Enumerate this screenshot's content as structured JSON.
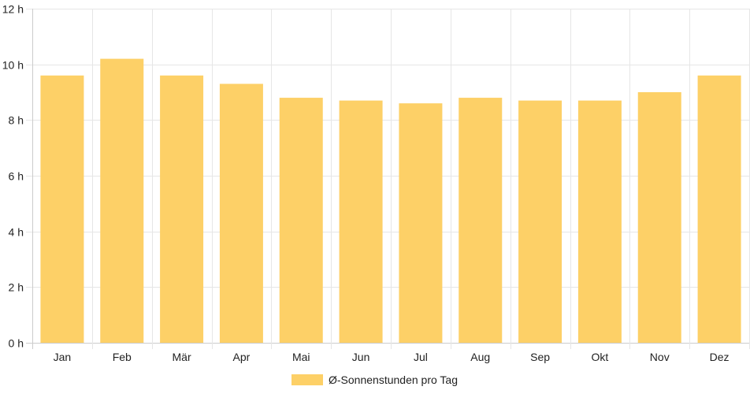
{
  "chart_data": {
    "type": "bar",
    "categories": [
      "Jan",
      "Feb",
      "Mär",
      "Apr",
      "Mai",
      "Jun",
      "Jul",
      "Aug",
      "Sep",
      "Okt",
      "Nov",
      "Dez"
    ],
    "series": [
      {
        "name": "Ø-Sonnenstunden pro Tag",
        "values": [
          9.6,
          10.2,
          9.6,
          9.3,
          8.8,
          8.7,
          8.6,
          8.8,
          8.7,
          8.7,
          9.0,
          9.6
        ],
        "color": "#fdd067"
      }
    ],
    "y_ticks": [
      "0 h",
      "2 h",
      "4 h",
      "6 h",
      "8 h",
      "10 h",
      "12 h"
    ],
    "ylim": [
      0,
      12
    ],
    "y_tick_step": 2,
    "grid": true,
    "legend_position": "bottom-center"
  }
}
